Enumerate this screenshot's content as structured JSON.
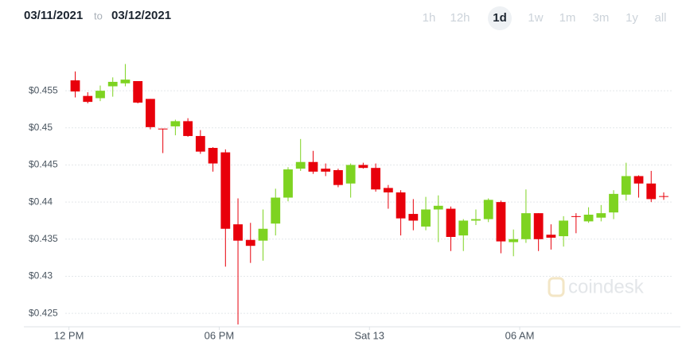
{
  "header": {
    "from": "03/11/2021",
    "to_label": "to",
    "to": "03/12/2021"
  },
  "range_buttons": [
    {
      "label": "1h",
      "active": false
    },
    {
      "label": "12h",
      "active": false
    },
    {
      "label": "1d",
      "active": true
    },
    {
      "label": "1w",
      "active": false
    },
    {
      "label": "1m",
      "active": false
    },
    {
      "label": "3m",
      "active": false
    },
    {
      "label": "1y",
      "active": false
    },
    {
      "label": "all",
      "active": false
    }
  ],
  "chart_data": {
    "type": "candlestick",
    "watermark": "coindesk",
    "up_color": "#7ed321",
    "down_color": "#e8000b",
    "grid": true,
    "xlim": [
      -1.8,
      24.1
    ],
    "xticks": [
      {
        "value": 0,
        "label": "12 PM"
      },
      {
        "value": 6,
        "label": "06 PM"
      },
      {
        "value": 12,
        "label": "Sat 13"
      },
      {
        "value": 18,
        "label": "06 AM"
      }
    ],
    "ylim": [
      0.4233,
      0.4608
    ],
    "yticks": [
      {
        "value": 0.425,
        "label": "$0.425"
      },
      {
        "value": 0.43,
        "label": "$0.43"
      },
      {
        "value": 0.435,
        "label": "$0.435"
      },
      {
        "value": 0.44,
        "label": "$0.44"
      },
      {
        "value": 0.445,
        "label": "$0.445"
      },
      {
        "value": 0.45,
        "label": "$0.45"
      },
      {
        "value": 0.455,
        "label": "$0.455"
      }
    ],
    "x": [
      0.25,
      0.75,
      1.25,
      1.75,
      2.25,
      2.75,
      3.25,
      3.75,
      4.25,
      4.75,
      5.25,
      5.75,
      6.25,
      6.75,
      7.25,
      7.75,
      8.25,
      8.75,
      9.25,
      9.75,
      10.25,
      10.75,
      11.25,
      11.75,
      12.25,
      12.75,
      13.25,
      13.75,
      14.25,
      14.75,
      15.25,
      15.75,
      16.25,
      16.75,
      17.25,
      17.75,
      18.25,
      18.75,
      19.25,
      19.75,
      20.25,
      20.75,
      21.25,
      21.75,
      22.25,
      22.75,
      23.25,
      23.75
    ],
    "open": [
      0.4564,
      0.4543,
      0.454,
      0.4556,
      0.456,
      0.4563,
      0.4539,
      0.4499,
      0.4502,
      0.4509,
      0.4489,
      0.4473,
      0.4467,
      0.437,
      0.4349,
      0.4348,
      0.4371,
      0.4406,
      0.4445,
      0.4454,
      0.4445,
      0.4443,
      0.4425,
      0.445,
      0.4446,
      0.4419,
      0.4413,
      0.4384,
      0.4367,
      0.439,
      0.4391,
      0.4355,
      0.4375,
      0.4377,
      0.44,
      0.4346,
      0.435,
      0.4385,
      0.4356,
      0.4354,
      0.4381,
      0.4374,
      0.4379,
      0.4386,
      0.441,
      0.4435,
      0.4425,
      0.4408
    ],
    "high": [
      0.4576,
      0.4548,
      0.4557,
      0.4568,
      0.4586,
      0.4563,
      0.4539,
      0.4499,
      0.4511,
      0.4513,
      0.4497,
      0.4474,
      0.4471,
      0.4405,
      0.4372,
      0.439,
      0.4418,
      0.4447,
      0.4485,
      0.4469,
      0.4452,
      0.4445,
      0.4452,
      0.4453,
      0.4452,
      0.4423,
      0.4416,
      0.4404,
      0.4407,
      0.4409,
      0.4394,
      0.4377,
      0.439,
      0.4405,
      0.4402,
      0.4363,
      0.4417,
      0.4385,
      0.437,
      0.4381,
      0.4385,
      0.4393,
      0.4396,
      0.4416,
      0.4453,
      0.4436,
      0.4442,
      0.4413
    ],
    "low": [
      0.4541,
      0.4533,
      0.4536,
      0.4542,
      0.4556,
      0.4533,
      0.4498,
      0.4466,
      0.449,
      0.4488,
      0.4465,
      0.4441,
      0.4313,
      0.4235,
      0.4318,
      0.4321,
      0.4355,
      0.4401,
      0.4442,
      0.4438,
      0.4435,
      0.442,
      0.4406,
      0.4445,
      0.4414,
      0.4391,
      0.4355,
      0.4362,
      0.4362,
      0.4346,
      0.4334,
      0.4334,
      0.4369,
      0.4373,
      0.4331,
      0.4327,
      0.4345,
      0.4334,
      0.4336,
      0.434,
      0.4358,
      0.4372,
      0.4374,
      0.4377,
      0.4402,
      0.4406,
      0.44,
      0.4403
    ],
    "close": [
      0.4549,
      0.4535,
      0.455,
      0.4562,
      0.4565,
      0.4534,
      0.4501,
      0.4498,
      0.4509,
      0.4489,
      0.4468,
      0.4452,
      0.4364,
      0.4348,
      0.4341,
      0.4364,
      0.4406,
      0.4444,
      0.4454,
      0.4441,
      0.4441,
      0.4423,
      0.445,
      0.4446,
      0.4417,
      0.4413,
      0.4378,
      0.4375,
      0.439,
      0.4395,
      0.4353,
      0.4375,
      0.4377,
      0.4403,
      0.4347,
      0.435,
      0.4385,
      0.435,
      0.4352,
      0.4375,
      0.438,
      0.4383,
      0.4385,
      0.4411,
      0.4435,
      0.4425,
      0.4404,
      0.4407
    ]
  }
}
